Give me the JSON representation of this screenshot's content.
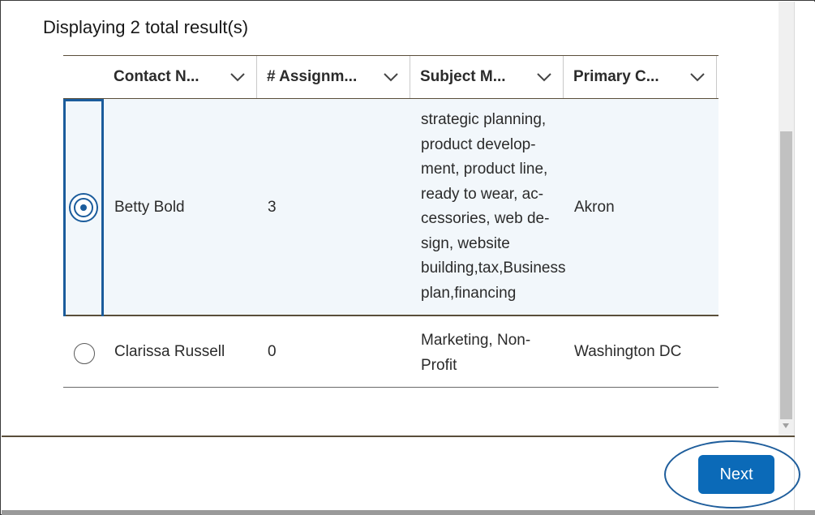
{
  "results_summary": "Displaying 2 total result(s)",
  "table": {
    "columns": [
      {
        "label": "Contact N..."
      },
      {
        "label": "# Assignm..."
      },
      {
        "label": "Subject M..."
      },
      {
        "label": "Primary C..."
      }
    ],
    "rows": [
      {
        "selected": true,
        "contact_name": "Betty Bold",
        "assignments": "3",
        "subject_lines": [
          "strategic planning,",
          "product develop-",
          "ment, product line,",
          "ready to wear, ac-",
          "cessories, web de-",
          "sign, website",
          "building,tax,Business",
          "plan,financing"
        ],
        "primary_city": "Akron"
      },
      {
        "selected": false,
        "contact_name": "Clarissa Russell",
        "assignments": "0",
        "subject_lines": [
          "Marketing, Non-",
          "Profit"
        ],
        "primary_city": "Washington DC"
      }
    ]
  },
  "footer": {
    "next_label": "Next"
  },
  "colors": {
    "accent": "#0b6ab8",
    "selection_outline": "#1b5c9c",
    "selected_row_bg": "#f2f7fb"
  },
  "icons": {
    "column_sort": "chevron-down-icon"
  }
}
